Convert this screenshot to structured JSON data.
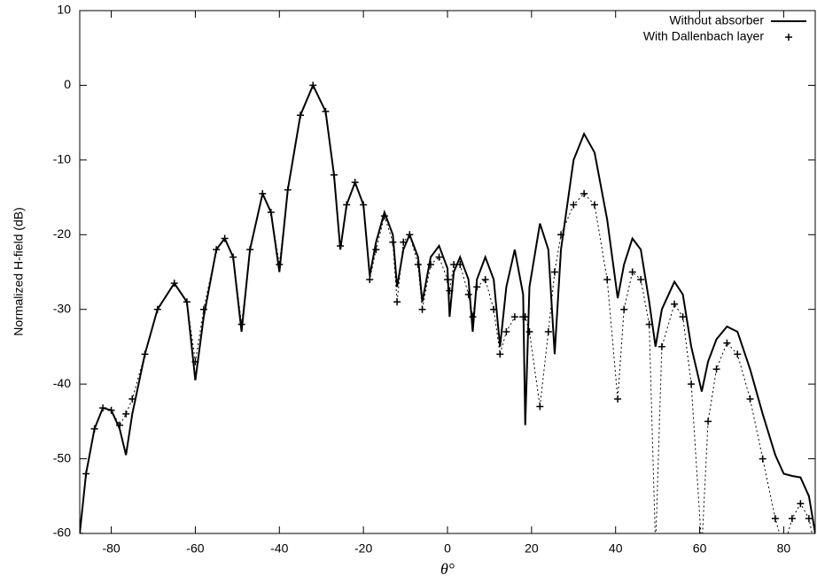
{
  "chart_data": {
    "type": "line",
    "xlabel": "θ°",
    "ylabel": "Normalized H-field (dB)",
    "xlim": [
      -87.5,
      87.5
    ],
    "ylim": [
      -60,
      10
    ],
    "xticks": [
      -80,
      -60,
      -40,
      -20,
      0,
      20,
      40,
      60,
      80
    ],
    "yticks": [
      -60,
      -50,
      -40,
      -30,
      -20,
      -10,
      0,
      10
    ],
    "legend": "top-right",
    "x": [
      -87.5,
      -86,
      -84,
      -82,
      -80,
      -78,
      -76.5,
      -75,
      -72,
      -69,
      -65,
      -62,
      -60,
      -58,
      -55,
      -53,
      -51,
      -49,
      -47,
      -44,
      -42,
      -40,
      -38,
      -35,
      -32,
      -29,
      -27,
      -25.5,
      -24,
      -22,
      -20,
      -18.5,
      -17,
      -15,
      -13,
      -12,
      -10.5,
      -9,
      -7,
      -6,
      -4,
      -2,
      0,
      0.5,
      1.5,
      3,
      5,
      6,
      7,
      9,
      11,
      12.5,
      14,
      16,
      18,
      18.5,
      19.5,
      22,
      24,
      25.5,
      27,
      30,
      32.5,
      35,
      38,
      40.5,
      42,
      44,
      46,
      48,
      49.5,
      51,
      54,
      56,
      58,
      60.5,
      62,
      64,
      66.5,
      69,
      72,
      75,
      78,
      80,
      82,
      84,
      86,
      87.5
    ],
    "series": [
      {
        "name": "Without absorber",
        "color": "#000000",
        "line_style": "solid",
        "marker": "none",
        "values": [
          -60,
          -52,
          -46,
          -43.2,
          -43.5,
          -46,
          -49.5,
          -44,
          -36,
          -30,
          -26.5,
          -29,
          -39.5,
          -31,
          -22,
          -20.5,
          -23,
          -33,
          -22,
          -14.5,
          -17,
          -25,
          -14,
          -4,
          0,
          -3.5,
          -12,
          -22,
          -16,
          -13,
          -16,
          -25.5,
          -21,
          -17,
          -20,
          -27,
          -22,
          -20,
          -23,
          -29,
          -23,
          -21.5,
          -24.5,
          -31,
          -25,
          -23,
          -26,
          -33,
          -26,
          -23,
          -26,
          -35,
          -27,
          -22,
          -28,
          -45.5,
          -27,
          -18.5,
          -22,
          -36,
          -22,
          -10,
          -6.5,
          -9,
          -18,
          -28.5,
          -24,
          -20.5,
          -22,
          -29,
          -35,
          -30,
          -26.3,
          -28,
          -35,
          -41,
          -37,
          -34,
          -32.3,
          -33,
          -38,
          -44,
          -49.5,
          -52,
          -52.3,
          -52.5,
          -55,
          -60
        ]
      },
      {
        "name": "With Dallenbach layer",
        "color": "#000000",
        "line_style": "dotted",
        "marker": "+",
        "values": [
          -60,
          -52,
          -46,
          -43.2,
          -43.5,
          -45.5,
          -44,
          -42,
          -36,
          -30,
          -26.5,
          -29,
          -37,
          -30,
          -22,
          -20.5,
          -23,
          -32,
          -22,
          -14.5,
          -17,
          -24,
          -14,
          -4,
          0,
          -3.5,
          -12,
          -21.5,
          -16,
          -13,
          -16,
          -26,
          -22,
          -17.5,
          -21,
          -29,
          -21,
          -20,
          -24,
          -30,
          -24,
          -23,
          -26,
          -27.5,
          -24,
          -24,
          -28,
          -31,
          -27,
          -26,
          -30,
          -36,
          -33,
          -31,
          -31,
          -31,
          -33,
          -43,
          -33,
          -25,
          -20,
          -16,
          -14.5,
          -16,
          -26,
          -42,
          -30,
          -25,
          -26,
          -32,
          -62,
          -35,
          -29.3,
          -31,
          -40,
          -62,
          -45,
          -38,
          -34.5,
          -36,
          -42,
          -50,
          -58,
          -62,
          -58,
          -56,
          -58,
          -62
        ]
      }
    ]
  }
}
